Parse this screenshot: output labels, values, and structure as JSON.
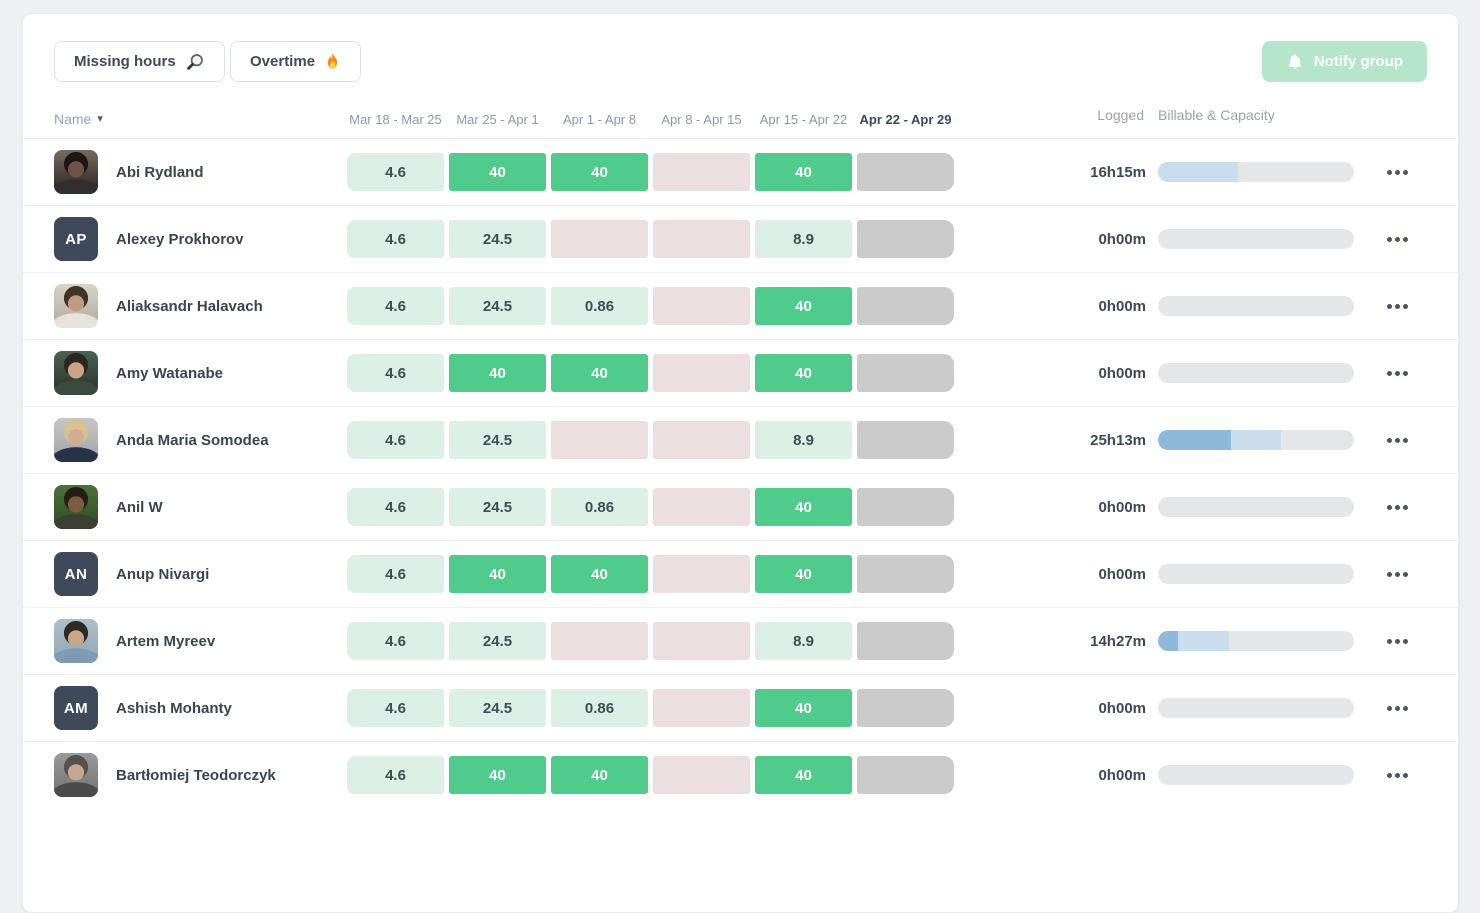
{
  "toolbar": {
    "missing_hours_label": "Missing hours",
    "overtime_label": "Overtime",
    "notify_group_label": "Notify group",
    "icons": [
      "magnifier-icon",
      "flame-icon",
      "bell-icon"
    ]
  },
  "table": {
    "name_header": "Name",
    "logged_header": "Logged",
    "capacity_header": "Billable & Capacity",
    "week_headers": [
      {
        "label": "Mar 18 - Mar 25",
        "current": false
      },
      {
        "label": "Mar 25 - Apr 1",
        "current": false
      },
      {
        "label": "Apr 1 - Apr 8",
        "current": false
      },
      {
        "label": "Apr 8 - Apr 15",
        "current": false
      },
      {
        "label": "Apr 15 - Apr 22",
        "current": false
      },
      {
        "label": "Apr 22 - Apr 29",
        "current": true
      }
    ],
    "rows": [
      {
        "name": "Abi Rydland",
        "avatar": {
          "type": "photo",
          "bg": "#7a6a60",
          "bg2": "#262120",
          "face": "#6e5346",
          "hair": "#1d1818",
          "body": "#332d2b"
        },
        "cells": [
          {
            "value": "4.6",
            "state": "partial"
          },
          {
            "value": "40",
            "state": "full"
          },
          {
            "value": "40",
            "state": "full"
          },
          {
            "value": "",
            "state": "missing"
          },
          {
            "value": "40",
            "state": "full"
          },
          {
            "value": "",
            "state": "future"
          }
        ],
        "logged": "16h15m",
        "bar": {
          "billable_pct": 0,
          "nonbillable_pct": 41
        }
      },
      {
        "name": "Alexey Prokhorov",
        "avatar": {
          "type": "initials",
          "text": "AP"
        },
        "cells": [
          {
            "value": "4.6",
            "state": "partial"
          },
          {
            "value": "24.5",
            "state": "partial"
          },
          {
            "value": "",
            "state": "missing"
          },
          {
            "value": "",
            "state": "missing"
          },
          {
            "value": "8.9",
            "state": "partial"
          },
          {
            "value": "",
            "state": "future"
          }
        ],
        "logged": "0h00m",
        "bar": {
          "billable_pct": 0,
          "nonbillable_pct": 0
        }
      },
      {
        "name": "Aliaksandr Halavach",
        "avatar": {
          "type": "photo",
          "bg": "#d8d2c8",
          "bg2": "#b3a99c",
          "face": "#c29b7e",
          "hair": "#3f3428",
          "body": "#e7e3da"
        },
        "cells": [
          {
            "value": "4.6",
            "state": "partial"
          },
          {
            "value": "24.5",
            "state": "partial"
          },
          {
            "value": "0.86",
            "state": "partial"
          },
          {
            "value": "",
            "state": "missing"
          },
          {
            "value": "40",
            "state": "full"
          },
          {
            "value": "",
            "state": "future"
          }
        ],
        "logged": "0h00m",
        "bar": {
          "billable_pct": 0,
          "nonbillable_pct": 0
        }
      },
      {
        "name": "Amy Watanabe",
        "avatar": {
          "type": "photo",
          "bg": "#4a6252",
          "bg2": "#28342c",
          "face": "#cfa287",
          "hair": "#2b2620",
          "body": "#3a4a40"
        },
        "cells": [
          {
            "value": "4.6",
            "state": "partial"
          },
          {
            "value": "40",
            "state": "full"
          },
          {
            "value": "40",
            "state": "full"
          },
          {
            "value": "",
            "state": "missing"
          },
          {
            "value": "40",
            "state": "full"
          },
          {
            "value": "",
            "state": "future"
          }
        ],
        "logged": "0h00m",
        "bar": {
          "billable_pct": 0,
          "nonbillable_pct": 0
        }
      },
      {
        "name": "Anda Maria Somodea",
        "avatar": {
          "type": "photo",
          "bg": "#c4c7c7",
          "bg2": "#9da3a5",
          "face": "#d3ab8e",
          "hair": "#d9c08e",
          "body": "#263349"
        },
        "cells": [
          {
            "value": "4.6",
            "state": "partial"
          },
          {
            "value": "24.5",
            "state": "partial"
          },
          {
            "value": "",
            "state": "missing"
          },
          {
            "value": "",
            "state": "missing"
          },
          {
            "value": "8.9",
            "state": "partial"
          },
          {
            "value": "",
            "state": "future"
          }
        ],
        "logged": "25h13m",
        "bar": {
          "billable_pct": 37,
          "nonbillable_pct": 26
        }
      },
      {
        "name": "Anil W",
        "avatar": {
          "type": "photo",
          "bg": "#4c7339",
          "bg2": "#2e4b25",
          "face": "#7d5c43",
          "hair": "#241d16",
          "body": "#3a4035"
        },
        "cells": [
          {
            "value": "4.6",
            "state": "partial"
          },
          {
            "value": "24.5",
            "state": "partial"
          },
          {
            "value": "0.86",
            "state": "partial"
          },
          {
            "value": "",
            "state": "missing"
          },
          {
            "value": "40",
            "state": "full"
          },
          {
            "value": "",
            "state": "future"
          }
        ],
        "logged": "0h00m",
        "bar": {
          "billable_pct": 0,
          "nonbillable_pct": 0
        }
      },
      {
        "name": "Anup Nivargi",
        "avatar": {
          "type": "initials",
          "text": "AN"
        },
        "cells": [
          {
            "value": "4.6",
            "state": "partial"
          },
          {
            "value": "40",
            "state": "full"
          },
          {
            "value": "40",
            "state": "full"
          },
          {
            "value": "",
            "state": "missing"
          },
          {
            "value": "40",
            "state": "full"
          },
          {
            "value": "",
            "state": "future"
          }
        ],
        "logged": "0h00m",
        "bar": {
          "billable_pct": 0,
          "nonbillable_pct": 0
        }
      },
      {
        "name": "Artem Myreev",
        "avatar": {
          "type": "photo",
          "bg": "#afc0cb",
          "bg2": "#90a6b6",
          "face": "#caa588",
          "hair": "#2f2a24",
          "body": "#7f9ab4"
        },
        "cells": [
          {
            "value": "4.6",
            "state": "partial"
          },
          {
            "value": "24.5",
            "state": "partial"
          },
          {
            "value": "",
            "state": "missing"
          },
          {
            "value": "",
            "state": "missing"
          },
          {
            "value": "8.9",
            "state": "partial"
          },
          {
            "value": "",
            "state": "future"
          }
        ],
        "logged": "14h27m",
        "bar": {
          "billable_pct": 10,
          "nonbillable_pct": 26
        }
      },
      {
        "name": "Ashish Mohanty",
        "avatar": {
          "type": "initials",
          "text": "AM"
        },
        "cells": [
          {
            "value": "4.6",
            "state": "partial"
          },
          {
            "value": "24.5",
            "state": "partial"
          },
          {
            "value": "0.86",
            "state": "partial"
          },
          {
            "value": "",
            "state": "missing"
          },
          {
            "value": "40",
            "state": "full"
          },
          {
            "value": "",
            "state": "future"
          }
        ],
        "logged": "0h00m",
        "bar": {
          "billable_pct": 0,
          "nonbillable_pct": 0
        }
      },
      {
        "name": "Bartłomiej Teodorczyk",
        "avatar": {
          "type": "photo",
          "bg": "#9b9b9b",
          "bg2": "#717171",
          "face": "#c8a78f",
          "hair": "#565250",
          "body": "#4b4b4b"
        },
        "cells": [
          {
            "value": "4.6",
            "state": "partial"
          },
          {
            "value": "40",
            "state": "full"
          },
          {
            "value": "40",
            "state": "full"
          },
          {
            "value": "",
            "state": "missing"
          },
          {
            "value": "40",
            "state": "full"
          },
          {
            "value": "",
            "state": "future"
          }
        ],
        "logged": "0h00m",
        "bar": {
          "billable_pct": 0,
          "nonbillable_pct": 0
        }
      }
    ]
  },
  "colors": {
    "cell_partial_bg": "#dcf0e5",
    "cell_full_bg": "#4fcb8c",
    "cell_missing_bg": "#ebdfdf",
    "cell_future_bg": "#cbcbcb",
    "bar_billable": "#8dbad8",
    "bar_nonbillable": "#cadeee",
    "bar_track": "#e5e6e7",
    "notify_button_bg": "#b5e6cb",
    "initials_avatar_bg": "#3e4a59"
  }
}
